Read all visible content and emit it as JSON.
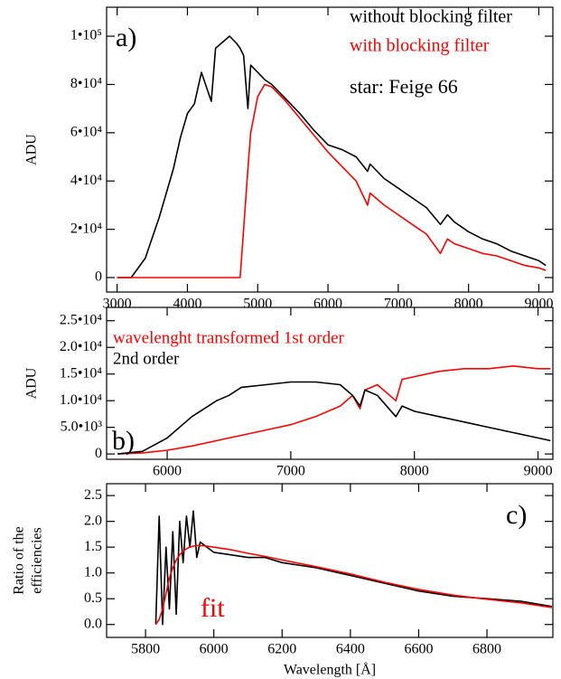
{
  "chart_data": [
    {
      "type": "line",
      "ylabel": "ADU",
      "annotations": [
        "a)",
        "star: Feige 66"
      ],
      "x": [
        3000,
        3200,
        3400,
        3600,
        3800,
        3900,
        4000,
        4100,
        4200,
        4340,
        4400,
        4600,
        4700,
        4750,
        4800,
        4861,
        4900,
        5000,
        5100,
        5200,
        5400,
        5600,
        5800,
        6000,
        6200,
        6400,
        6563,
        6600,
        6800,
        7000,
        7200,
        7400,
        7600,
        7700,
        7800,
        8000,
        8200,
        8400,
        8600,
        8800,
        9000,
        9100
      ],
      "series": [
        {
          "name": "without blocking filter",
          "color": "#000000",
          "values": [
            0,
            0,
            8000,
            25000,
            45000,
            58000,
            68000,
            72000,
            85000,
            73000,
            95000,
            100000,
            97000,
            95000,
            92000,
            70000,
            88000,
            85000,
            82000,
            80000,
            74000,
            68000,
            61000,
            55000,
            53000,
            50000,
            44000,
            47000,
            41000,
            37000,
            33000,
            29000,
            22000,
            26000,
            23000,
            19000,
            16000,
            14000,
            11000,
            9000,
            7000,
            5000
          ]
        },
        {
          "name": "with blocking filter",
          "color": "#ff0000",
          "values": [
            0,
            0,
            0,
            0,
            0,
            0,
            0,
            0,
            0,
            0,
            0,
            0,
            0,
            0,
            20000,
            45000,
            60000,
            75000,
            80000,
            79000,
            73000,
            66000,
            59000,
            52000,
            46000,
            40000,
            30000,
            35000,
            30000,
            26000,
            22000,
            18000,
            10000,
            16000,
            14000,
            12000,
            10000,
            9000,
            7000,
            5000,
            4000,
            3000
          ]
        }
      ],
      "xlim": [
        2850,
        9200
      ],
      "xticks": [
        3000,
        4000,
        5000,
        6000,
        7000,
        8000,
        9000
      ],
      "ylim": [
        -6000,
        112000
      ],
      "yticks": [
        0,
        {
          "value": 20000,
          "label": "2•10⁴"
        },
        {
          "value": 40000,
          "label": "4•10⁴"
        },
        {
          "value": 60000,
          "label": "6•10⁴"
        },
        {
          "value": 80000,
          "label": "8•10⁴"
        },
        {
          "value": 100000,
          "label": "1•10⁵"
        }
      ]
    },
    {
      "type": "line",
      "ylabel": "ADU",
      "annotations": [
        "b)"
      ],
      "x": [
        5600,
        5800,
        6000,
        6200,
        6400,
        6500,
        6600,
        6800,
        7000,
        7200,
        7400,
        7500,
        7560,
        7600,
        7700,
        7850,
        7900,
        8000,
        8200,
        8400,
        8600,
        8800,
        9000,
        9100
      ],
      "series": [
        {
          "name": "wavelenght transformed 1st order",
          "color": "#ff0000",
          "values": [
            0,
            200,
            700,
            1500,
            2500,
            3000,
            3500,
            4500,
            5500,
            7000,
            9000,
            11000,
            8500,
            12000,
            13000,
            10000,
            14000,
            14500,
            15500,
            16000,
            16000,
            16500,
            16000,
            16000
          ]
        },
        {
          "name": "2nd order",
          "color": "#000000",
          "values": [
            0,
            500,
            3000,
            7000,
            10000,
            11000,
            12500,
            13000,
            13500,
            13500,
            13000,
            11000,
            9000,
            12000,
            11000,
            7000,
            9000,
            8000,
            7000,
            6000,
            5000,
            4000,
            3000,
            2500
          ]
        }
      ],
      "xlim": [
        5510,
        9120
      ],
      "xticks": [
        6000,
        7000,
        8000,
        9000
      ],
      "ylim": [
        -1000,
        27500
      ],
      "yticks": [
        0,
        {
          "value": 5000,
          "label": "5.0•10³"
        },
        {
          "value": 10000,
          "label": "1.0•10⁴"
        },
        {
          "value": 15000,
          "label": "1.5•10⁴"
        },
        {
          "value": 20000,
          "label": "2.0•10⁴"
        },
        {
          "value": 25000,
          "label": "2.5•10⁴"
        }
      ]
    },
    {
      "type": "line",
      "ylabel": [
        "Ratio of the",
        "efficiencies"
      ],
      "xlabel": "Wavelength [Å]",
      "annotations": [
        "c)",
        "fit"
      ],
      "x": [
        5830,
        5840,
        5850,
        5860,
        5870,
        5880,
        5890,
        5900,
        5910,
        5920,
        5930,
        5940,
        5950,
        5960,
        5980,
        6000,
        6050,
        6100,
        6150,
        6200,
        6300,
        6400,
        6500,
        6600,
        6700,
        6800,
        6900,
        6990
      ],
      "series": [
        {
          "color": "#000000",
          "values": [
            0,
            2.1,
            0,
            1.5,
            0.3,
            1.8,
            0.2,
            2.0,
            1.2,
            2.1,
            1.5,
            2.2,
            1.3,
            1.6,
            1.5,
            1.4,
            1.35,
            1.3,
            1.3,
            1.2,
            1.1,
            0.95,
            0.8,
            0.65,
            0.55,
            0.5,
            0.45,
            0.35
          ]
        },
        {
          "color": "#ff0000",
          "values": [
            0,
            0.1,
            0.3,
            0.6,
            0.9,
            1.1,
            1.25,
            1.35,
            1.42,
            1.47,
            1.5,
            1.52,
            1.53,
            1.53,
            1.52,
            1.5,
            1.45,
            1.38,
            1.32,
            1.25,
            1.12,
            0.98,
            0.82,
            0.68,
            0.57,
            0.49,
            0.42,
            0.33
          ]
        }
      ],
      "xlim": [
        5686,
        6993
      ],
      "xticks": [
        5800,
        6000,
        6200,
        6400,
        6600,
        6800
      ],
      "ylim": [
        -0.25,
        2.73
      ],
      "yticks": [
        {
          "value": 0,
          "label": "0.0"
        },
        0.5,
        {
          "value": 1,
          "label": "1.0"
        },
        1.5,
        {
          "value": 2,
          "label": "2.0"
        },
        2.5
      ]
    }
  ]
}
